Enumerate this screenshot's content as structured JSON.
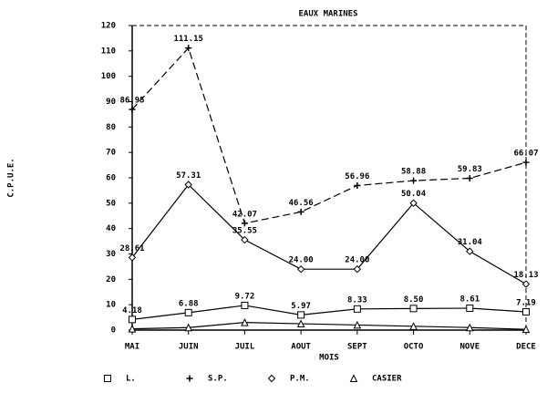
{
  "chart_data": {
    "type": "line",
    "title": "EAUX MARINES",
    "x_label": "MOIS",
    "y_label": "C.P.U.E.",
    "categories": [
      "MAI",
      "JUIN",
      "JUIL",
      "AOUT",
      "SEPT",
      "OCTO",
      "NOVE",
      "DECE"
    ],
    "ylim": [
      0,
      120
    ],
    "yticks": [
      0,
      10,
      20,
      30,
      40,
      50,
      60,
      70,
      80,
      90,
      100,
      110,
      120
    ],
    "series": [
      {
        "name": "L.",
        "color": "#000000",
        "marker": "square",
        "dash": false,
        "values": [
          4.18,
          6.88,
          9.72,
          5.97,
          8.33,
          8.5,
          8.61,
          7.19
        ],
        "value_labels": [
          "4.18",
          "6.88",
          "9.72",
          "5.97",
          "8.33",
          "8.50",
          "8.61",
          "7.19"
        ]
      },
      {
        "name": "S.P.",
        "color": "#000000",
        "marker": "plus",
        "dash": true,
        "values": [
          86.95,
          111.15,
          42.07,
          46.56,
          56.96,
          58.88,
          59.83,
          66.07
        ],
        "value_labels": [
          "86.95",
          "111.15",
          "42.07",
          "46.56",
          "56.96",
          "58.88",
          "59.83",
          "66.07"
        ]
      },
      {
        "name": "P.M.",
        "color": "#000000",
        "marker": "diamond",
        "dash": false,
        "values": [
          28.61,
          57.31,
          35.55,
          24.0,
          24.0,
          50.04,
          31.04,
          18.13
        ],
        "value_labels": [
          "28.61",
          "57.31",
          "35.55",
          "24.00",
          "24.00",
          "50.04",
          "31.04",
          "18.13"
        ]
      },
      {
        "name": "CASIER",
        "color": "#000000",
        "marker": "triangle",
        "dash": false,
        "values": [
          0.5,
          1,
          3,
          2.5,
          2,
          1.5,
          1,
          0.3
        ]
      }
    ]
  }
}
